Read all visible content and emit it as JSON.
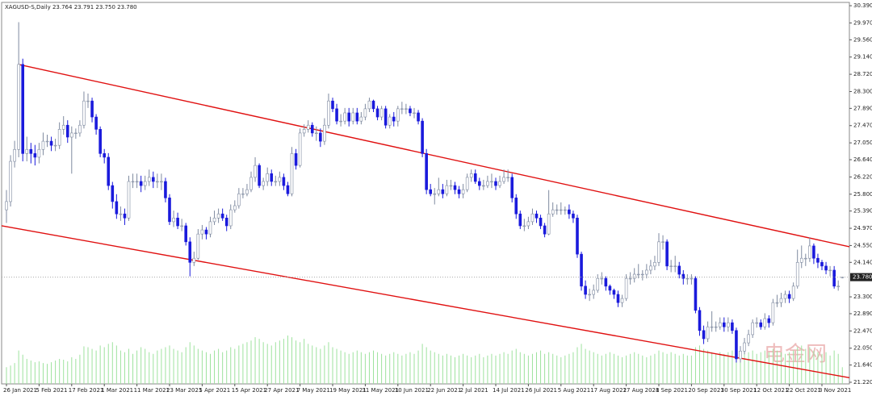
{
  "chart_data": {
    "type": "candlestick",
    "title": "XAGUSD-S,Daily  23.764 23.791 23.750 23.780",
    "watermark": "电金网",
    "categories": [
      "26 Jan 2021",
      null,
      null,
      null,
      null,
      null,
      null,
      null,
      "5 Feb 2021",
      null,
      null,
      null,
      null,
      null,
      null,
      null,
      "17 Feb 2021",
      null,
      null,
      null,
      null,
      null,
      null,
      null,
      "1 Mar 2021",
      null,
      null,
      null,
      null,
      null,
      null,
      null,
      "11 Mar 2021",
      null,
      null,
      null,
      null,
      null,
      null,
      null,
      "23 Mar 2021",
      null,
      null,
      null,
      null,
      null,
      null,
      null,
      "5 Apr 2021",
      null,
      null,
      null,
      null,
      null,
      null,
      null,
      "15 Apr 2021",
      null,
      null,
      null,
      null,
      null,
      null,
      null,
      "27 Apr 2021",
      null,
      null,
      null,
      null,
      null,
      null,
      null,
      "7 May 2021",
      null,
      null,
      null,
      null,
      null,
      null,
      null,
      "19 May 2021",
      null,
      null,
      null,
      null,
      null,
      null,
      null,
      "31 May 2021",
      null,
      null,
      null,
      null,
      null,
      null,
      null,
      "10 Jun 2021",
      null,
      null,
      null,
      null,
      null,
      null,
      null,
      "22 Jun 2021",
      null,
      null,
      null,
      null,
      null,
      null,
      null,
      "2 Jul 2021",
      null,
      null,
      null,
      null,
      null,
      null,
      null,
      "14 Jul 2021",
      null,
      null,
      null,
      null,
      null,
      null,
      null,
      "26 Jul 2021",
      null,
      null,
      null,
      null,
      null,
      null,
      null,
      "5 Aug 2021",
      null,
      null,
      null,
      null,
      null,
      null,
      null,
      "17 Aug 2021",
      null,
      null,
      null,
      null,
      null,
      null,
      null,
      "27 Aug 2021",
      null,
      null,
      null,
      null,
      null,
      null,
      null,
      "8 Sep 2021",
      null,
      null,
      null,
      null,
      null,
      null,
      null,
      "20 Sep 2021",
      null,
      null,
      null,
      null,
      null,
      null,
      null,
      "30 Sep 2021",
      null,
      null,
      null,
      null,
      null,
      null,
      null,
      "12 Oct 2021",
      null,
      null,
      null,
      null,
      null,
      null,
      null,
      "22 Oct 2021",
      null,
      null,
      null,
      null,
      null,
      null,
      null,
      "3 Nov 2021",
      null,
      null,
      null,
      null,
      null
    ],
    "open": [
      25.42,
      25.62,
      26.6,
      26.89,
      28.96,
      26.79,
      26.89,
      26.79,
      26.7,
      26.89,
      27.09,
      27.09,
      26.99,
      26.99,
      27.38,
      27.48,
      27.19,
      27.29,
      27.29,
      27.48,
      28.07,
      28.07,
      27.68,
      27.38,
      26.79,
      26.7,
      26.01,
      25.62,
      25.32,
      25.32,
      25.22,
      26.11,
      26.11,
      26.11,
      26.01,
      26.11,
      26.21,
      26.11,
      26.11,
      26.11,
      25.71,
      25.13,
      25.22,
      25.03,
      25.03,
      24.64,
      24.14,
      24.24,
      24.83,
      24.93,
      24.83,
      25.13,
      25.22,
      25.32,
      25.22,
      25.03,
      25.42,
      25.52,
      25.81,
      25.81,
      25.91,
      26.21,
      26.5,
      26.01,
      26.11,
      26.3,
      26.11,
      26.11,
      26.21,
      26.01,
      25.81,
      26.79,
      26.5,
      27.29,
      27.38,
      27.48,
      27.29,
      27.29,
      27.09,
      27.48,
      28.07,
      27.88,
      27.58,
      27.58,
      27.78,
      27.58,
      27.78,
      27.58,
      27.68,
      27.88,
      28.07,
      27.88,
      27.68,
      27.88,
      27.48,
      27.68,
      27.58,
      27.88,
      27.88,
      27.88,
      27.78,
      27.78,
      27.58,
      26.79,
      25.91,
      25.81,
      25.81,
      25.91,
      25.81,
      26.01,
      26.01,
      25.91,
      25.81,
      25.91,
      26.21,
      26.3,
      26.11,
      26.01,
      26.01,
      26.11,
      26.11,
      26.01,
      26.11,
      26.21,
      26.21,
      25.71,
      25.32,
      25.03,
      25.03,
      25.13,
      25.32,
      25.22,
      25.03,
      24.83,
      25.32,
      25.42,
      25.42,
      25.42,
      25.42,
      25.32,
      25.22,
      24.34,
      23.56,
      23.36,
      23.36,
      23.46,
      23.75,
      23.75,
      23.56,
      23.46,
      23.36,
      23.16,
      23.26,
      23.75,
      23.75,
      23.85,
      23.85,
      23.85,
      23.95,
      24.05,
      24.14,
      24.64,
      24.64,
      24.05,
      24.05,
      24.05,
      23.85,
      23.75,
      23.75,
      23.75,
      22.97,
      22.48,
      22.28,
      22.57,
      22.57,
      22.57,
      22.67,
      22.57,
      22.67,
      22.48,
      21.79,
      21.98,
      22.18,
      22.38,
      22.67,
      22.67,
      22.57,
      22.77,
      22.67,
      23.16,
      23.16,
      23.26,
      23.36,
      23.26,
      23.56,
      24.14,
      24.24,
      24.24,
      24.54,
      24.24,
      24.14,
      24.05,
      23.95,
      23.95,
      23.56,
      23.764
    ],
    "high": [
      25.9,
      26.75,
      27.1,
      29.99,
      29.1,
      27.2,
      27.05,
      27.0,
      27.05,
      27.3,
      27.25,
      27.2,
      27.15,
      27.55,
      27.7,
      27.6,
      27.45,
      27.4,
      27.6,
      28.3,
      28.25,
      28.15,
      27.75,
      27.45,
      26.9,
      26.8,
      26.1,
      25.8,
      25.5,
      25.45,
      26.25,
      26.3,
      26.3,
      26.25,
      26.25,
      26.4,
      26.35,
      26.3,
      26.3,
      26.2,
      25.8,
      25.4,
      25.35,
      25.2,
      25.1,
      24.75,
      24.4,
      24.95,
      25.05,
      25.0,
      25.25,
      25.4,
      25.45,
      25.45,
      25.3,
      25.55,
      25.65,
      25.95,
      25.95,
      26.05,
      26.35,
      26.7,
      26.55,
      26.2,
      26.45,
      26.4,
      26.25,
      26.35,
      26.3,
      26.1,
      26.95,
      26.9,
      27.4,
      27.5,
      27.6,
      27.55,
      27.45,
      27.4,
      27.65,
      28.25,
      28.15,
      28.0,
      27.75,
      27.9,
      27.9,
      27.9,
      27.9,
      27.8,
      28.0,
      28.15,
      28.1,
      27.95,
      27.95,
      27.95,
      27.75,
      27.8,
      27.95,
      28.05,
      28.0,
      27.95,
      27.9,
      27.85,
      27.65,
      26.9,
      26.05,
      25.95,
      26.2,
      26.05,
      26.15,
      26.15,
      26.1,
      26.0,
      26.05,
      26.3,
      26.4,
      26.4,
      26.2,
      26.15,
      26.25,
      26.3,
      26.2,
      26.25,
      26.4,
      26.4,
      26.3,
      25.8,
      25.4,
      25.2,
      25.25,
      25.45,
      25.4,
      25.3,
      25.1,
      25.9,
      25.6,
      25.55,
      25.6,
      25.5,
      25.55,
      25.4,
      25.3,
      24.4,
      23.7,
      23.5,
      23.6,
      23.85,
      23.9,
      23.8,
      23.6,
      23.5,
      23.45,
      23.35,
      23.85,
      23.9,
      24.0,
      24.1,
      23.95,
      24.1,
      24.2,
      24.3,
      24.85,
      24.8,
      24.7,
      24.2,
      24.3,
      24.15,
      23.95,
      23.85,
      23.85,
      23.8,
      23.05,
      22.6,
      22.7,
      22.95,
      22.7,
      22.8,
      22.8,
      22.8,
      22.75,
      22.55,
      22.1,
      22.3,
      22.5,
      22.75,
      22.8,
      22.75,
      22.9,
      22.85,
      23.25,
      23.35,
      23.4,
      23.45,
      23.45,
      23.65,
      24.45,
      24.55,
      24.35,
      24.75,
      24.6,
      24.35,
      24.2,
      24.15,
      24.05,
      24.05,
      23.7,
      23.791
    ],
    "low": [
      25.1,
      25.5,
      26.45,
      26.7,
      26.6,
      26.6,
      26.55,
      26.5,
      26.55,
      26.75,
      26.95,
      26.85,
      26.85,
      26.9,
      27.25,
      27.05,
      26.3,
      27.15,
      27.2,
      27.4,
      27.9,
      27.55,
      27.25,
      26.7,
      26.55,
      25.9,
      25.45,
      25.2,
      25.15,
      25.05,
      25.15,
      25.95,
      25.95,
      25.85,
      25.9,
      26.0,
      25.95,
      25.95,
      25.9,
      25.6,
      25.05,
      25.0,
      24.95,
      24.9,
      24.55,
      23.8,
      24.05,
      24.2,
      24.7,
      24.7,
      24.75,
      25.05,
      25.1,
      25.15,
      24.9,
      24.95,
      25.35,
      25.45,
      25.7,
      25.75,
      25.85,
      26.1,
      25.95,
      25.9,
      26.0,
      26.0,
      26.0,
      26.0,
      25.9,
      25.75,
      25.75,
      26.4,
      26.45,
      27.2,
      27.3,
      27.2,
      27.1,
      26.95,
      27.0,
      27.4,
      27.8,
      27.5,
      27.45,
      27.5,
      27.45,
      27.5,
      27.5,
      27.5,
      27.6,
      27.8,
      27.8,
      27.6,
      27.6,
      27.4,
      27.4,
      27.45,
      27.45,
      27.75,
      27.75,
      27.7,
      27.65,
      27.5,
      26.7,
      25.8,
      25.75,
      25.55,
      25.75,
      25.7,
      25.75,
      25.9,
      25.8,
      25.7,
      25.7,
      25.85,
      26.1,
      26.05,
      25.9,
      25.9,
      25.95,
      25.95,
      25.9,
      25.95,
      26.05,
      26.1,
      25.6,
      25.2,
      24.95,
      24.9,
      24.95,
      25.05,
      25.1,
      24.95,
      24.75,
      24.8,
      25.25,
      25.3,
      25.3,
      25.3,
      25.2,
      25.1,
      24.25,
      23.45,
      23.25,
      23.2,
      23.25,
      23.4,
      23.6,
      23.45,
      23.35,
      23.25,
      23.05,
      23.05,
      23.2,
      23.6,
      23.65,
      23.75,
      23.7,
      23.75,
      23.85,
      23.95,
      24.05,
      24.45,
      23.95,
      23.9,
      23.9,
      23.75,
      23.6,
      23.6,
      23.6,
      22.9,
      22.35,
      22.15,
      22.2,
      22.45,
      22.45,
      22.5,
      22.45,
      22.45,
      22.4,
      21.7,
      21.7,
      21.9,
      22.1,
      22.3,
      22.55,
      22.5,
      22.5,
      22.55,
      22.6,
      23.05,
      23.05,
      23.15,
      23.15,
      23.2,
      23.5,
      24.0,
      24.05,
      24.15,
      24.1,
      24.0,
      23.95,
      23.85,
      23.8,
      23.5,
      23.45,
      23.75
    ],
    "close": [
      25.62,
      26.6,
      26.89,
      28.96,
      26.79,
      26.89,
      26.79,
      26.7,
      26.89,
      27.09,
      27.09,
      26.99,
      26.99,
      27.38,
      27.48,
      27.19,
      27.29,
      27.29,
      27.48,
      28.07,
      28.07,
      27.68,
      27.38,
      26.79,
      26.7,
      26.01,
      25.62,
      25.32,
      25.32,
      25.22,
      26.11,
      26.11,
      26.11,
      26.01,
      26.11,
      26.21,
      26.11,
      26.11,
      26.11,
      25.71,
      25.13,
      25.22,
      25.03,
      25.03,
      24.64,
      24.14,
      24.24,
      24.83,
      24.93,
      24.83,
      25.13,
      25.22,
      25.32,
      25.22,
      25.03,
      25.42,
      25.52,
      25.81,
      25.81,
      25.91,
      26.21,
      26.5,
      26.01,
      26.11,
      26.3,
      26.11,
      26.11,
      26.21,
      26.01,
      25.81,
      26.79,
      26.5,
      27.29,
      27.38,
      27.48,
      27.29,
      27.29,
      27.09,
      27.48,
      28.07,
      27.88,
      27.58,
      27.58,
      27.78,
      27.58,
      27.78,
      27.58,
      27.68,
      27.88,
      28.07,
      27.88,
      27.68,
      27.88,
      27.48,
      27.68,
      27.58,
      27.88,
      27.88,
      27.88,
      27.78,
      27.78,
      27.58,
      26.79,
      25.91,
      25.81,
      25.81,
      25.91,
      25.81,
      26.01,
      26.01,
      25.91,
      25.81,
      25.91,
      26.21,
      26.3,
      26.11,
      26.01,
      26.01,
      26.11,
      26.11,
      26.01,
      26.11,
      26.21,
      26.21,
      25.71,
      25.32,
      25.03,
      25.03,
      25.13,
      25.32,
      25.22,
      25.03,
      24.83,
      25.32,
      25.42,
      25.42,
      25.42,
      25.42,
      25.32,
      25.22,
      24.34,
      23.56,
      23.36,
      23.36,
      23.46,
      23.75,
      23.75,
      23.56,
      23.46,
      23.36,
      23.16,
      23.26,
      23.75,
      23.75,
      23.85,
      23.85,
      23.85,
      23.95,
      24.05,
      24.14,
      24.64,
      24.64,
      24.05,
      24.05,
      24.05,
      23.85,
      23.75,
      23.75,
      23.75,
      22.97,
      22.48,
      22.28,
      22.57,
      22.57,
      22.57,
      22.67,
      22.57,
      22.67,
      22.48,
      21.79,
      21.98,
      22.18,
      22.38,
      22.67,
      22.67,
      22.57,
      22.77,
      22.67,
      23.16,
      23.16,
      23.26,
      23.36,
      23.26,
      23.56,
      24.14,
      24.24,
      24.24,
      24.54,
      24.24,
      24.14,
      24.05,
      23.95,
      23.95,
      23.56,
      23.56,
      23.78
    ],
    "volume": [
      20,
      22,
      25,
      40,
      35,
      30,
      28,
      26,
      27,
      25,
      24,
      26,
      28,
      30,
      29,
      27,
      32,
      30,
      35,
      45,
      44,
      42,
      40,
      46,
      44,
      48,
      50,
      46,
      40,
      38,
      42,
      36,
      40,
      44,
      42,
      38,
      36,
      40,
      42,
      44,
      46,
      42,
      40,
      38,
      44,
      50,
      46,
      42,
      40,
      38,
      36,
      40,
      42,
      38,
      40,
      44,
      42,
      46,
      48,
      50,
      52,
      56,
      54,
      50,
      48,
      46,
      50,
      52,
      54,
      58,
      56,
      52,
      50,
      54,
      48,
      46,
      44,
      42,
      46,
      50,
      44,
      42,
      40,
      38,
      36,
      38,
      40,
      38,
      36,
      38,
      40,
      38,
      36,
      34,
      36,
      38,
      36,
      34,
      36,
      38,
      36,
      40,
      48,
      44,
      40,
      38,
      36,
      34,
      36,
      34,
      32,
      34,
      36,
      34,
      32,
      34,
      36,
      32,
      34,
      36,
      34,
      36,
      38,
      36,
      40,
      42,
      38,
      36,
      34,
      36,
      38,
      40,
      36,
      38,
      36,
      34,
      32,
      34,
      36,
      38,
      44,
      48,
      42,
      40,
      38,
      36,
      34,
      36,
      38,
      36,
      34,
      32,
      34,
      36,
      38,
      36,
      34,
      32,
      34,
      36,
      40,
      38,
      36,
      38,
      36,
      34,
      36,
      34,
      34,
      44,
      46,
      42,
      40,
      38,
      36,
      38,
      36,
      38,
      40,
      46,
      42,
      40,
      38,
      40,
      36,
      38,
      40,
      38,
      42,
      40,
      38,
      36,
      38,
      40,
      44,
      46,
      42,
      44,
      40,
      38,
      36,
      38,
      34,
      40,
      36,
      20
    ],
    "up_color": "#ffffff",
    "down_color": "#1a1adc",
    "wick_color": "#7f8aa0",
    "volume_color": "#9ee29e",
    "ylim": [
      21.18,
      30.47
    ],
    "yticks": [
      {
        "value": 30.39,
        "label": "30.390"
      },
      {
        "value": 29.97,
        "label": "29.970"
      },
      {
        "value": 29.56,
        "label": "29.560"
      },
      {
        "value": 29.14,
        "label": "29.140"
      },
      {
        "value": 28.72,
        "label": "28.720"
      },
      {
        "value": 28.3,
        "label": "28.300"
      },
      {
        "value": 27.89,
        "label": "27.890"
      },
      {
        "value": 27.47,
        "label": "27.470"
      },
      {
        "value": 27.05,
        "label": "27.050"
      },
      {
        "value": 26.64,
        "label": "26.640"
      },
      {
        "value": 26.22,
        "label": "26.220"
      },
      {
        "value": 25.8,
        "label": "25.800"
      },
      {
        "value": 25.39,
        "label": "25.390"
      },
      {
        "value": 24.97,
        "label": "24.970"
      },
      {
        "value": 24.55,
        "label": "24.550"
      },
      {
        "value": 24.14,
        "label": "24.140"
      },
      {
        "value": 23.3,
        "label": "23.300"
      },
      {
        "value": 22.89,
        "label": "22.890"
      },
      {
        "value": 22.47,
        "label": "22.470"
      },
      {
        "value": 22.05,
        "label": "22.050"
      },
      {
        "value": 21.64,
        "label": "21.640"
      },
      {
        "value": 21.22,
        "label": "21.220"
      }
    ],
    "current_price": {
      "value": 23.78,
      "label": "23.780"
    },
    "trendlines": [
      {
        "color": "#e01010",
        "values": [
          28.96,
          24.52
        ]
      },
      {
        "color": "#e01010",
        "values": [
          25.03,
          21.33
        ]
      }
    ]
  }
}
